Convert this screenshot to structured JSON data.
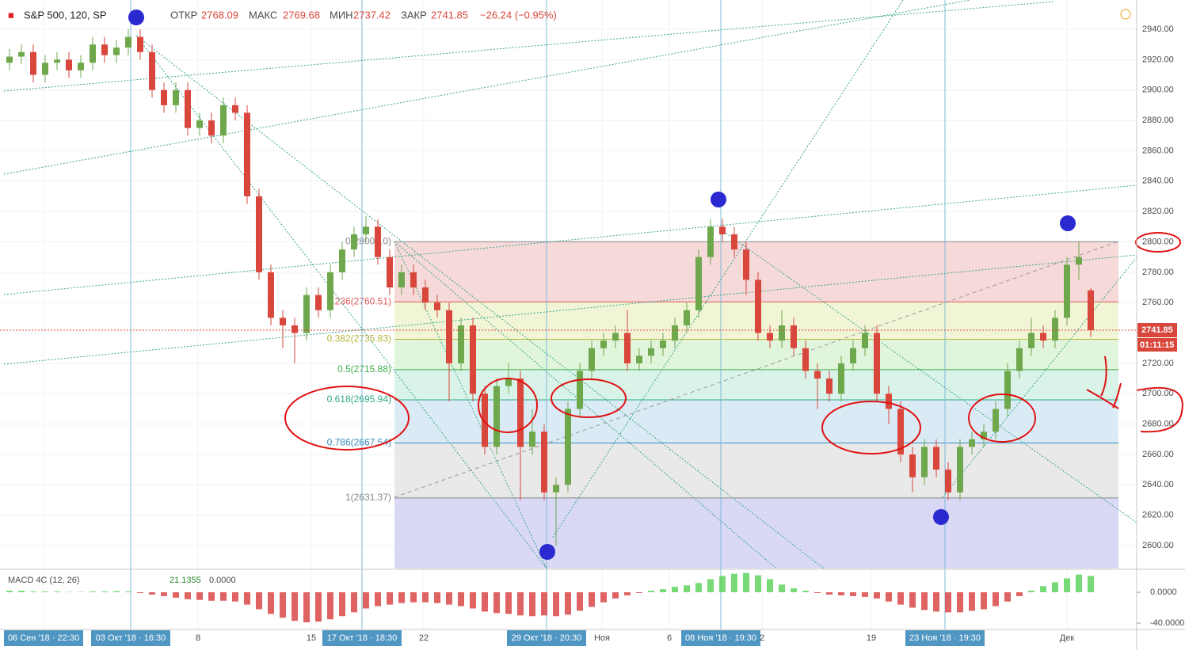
{
  "chart_data": {
    "type": "candlestick",
    "title": "S&P 500, 120, SP",
    "header_labels": {
      "open": "ОТКР",
      "high": "МАКС",
      "low": "МИН",
      "close": "ЗАКР"
    },
    "change": "−26.24 (−0.95%)",
    "timer": "01:11:15",
    "up_color": "#6fa84c",
    "down_color": "#d9473c",
    "ylim": [
      2584.9,
      2959.3
    ],
    "yticks": [
      {
        "value": 2600,
        "label": "2600.00"
      },
      {
        "value": 2620,
        "label": "2620.00"
      },
      {
        "value": 2640,
        "label": "2640.00"
      },
      {
        "value": 2660,
        "label": "2660.00"
      },
      {
        "value": 2680,
        "label": "2680.00"
      },
      {
        "value": 2700,
        "label": "2700.00"
      },
      {
        "value": 2720,
        "label": "2720.00"
      },
      {
        "value": 2740,
        "label": "2740.00"
      },
      {
        "value": 2760,
        "label": "2760.00"
      },
      {
        "value": 2780,
        "label": "2780.00"
      },
      {
        "value": 2800,
        "label": "2800.00"
      },
      {
        "value": 2820,
        "label": "2820.00"
      },
      {
        "value": 2840,
        "label": "2840.00"
      },
      {
        "value": 2860,
        "label": "2860.00"
      },
      {
        "value": 2880,
        "label": "2880.00"
      },
      {
        "value": 2900,
        "label": "2900.00"
      },
      {
        "value": 2920,
        "label": "2920.00"
      },
      {
        "value": 2940,
        "label": "2940.00"
      }
    ],
    "x_labels": [
      "06 Сен '18 · 22:30",
      "03 Окт '18 · 16:30",
      "8",
      "15",
      "17 Окт '18 · 18:30",
      "22",
      "29 Окт '18 · 20:30",
      "Ноя",
      "6",
      "08 Ноя '18 · 19:30",
      "2",
      "19",
      "23 Ноя '18 · 19:30",
      "Дек"
    ],
    "open": [
      2918,
      2922,
      2925,
      2910,
      2918,
      2920,
      2913,
      2918,
      2930,
      2923,
      2928,
      2935,
      2925,
      2900,
      2890,
      2900,
      2875,
      2880,
      2870,
      2890,
      2885,
      2830,
      2780,
      2750,
      2745,
      2740,
      2765,
      2755,
      2780,
      2795,
      2805,
      2810,
      2790,
      2770,
      2780,
      2770,
      2760,
      2755,
      2720,
      2745,
      2700,
      2665,
      2705,
      2710,
      2665,
      2675,
      2635,
      2640,
      2690,
      2715,
      2730,
      2735,
      2740,
      2720,
      2725,
      2730,
      2735,
      2745,
      2755,
      2790,
      2810,
      2805,
      2795,
      2775,
      2740,
      2735,
      2745,
      2730,
      2715,
      2710,
      2700,
      2720,
      2730,
      2740,
      2700,
      2690,
      2660,
      2645,
      2665,
      2650,
      2635,
      2665,
      2670,
      2675,
      2690,
      2715,
      2730,
      2740,
      2735,
      2750,
      2785,
      2768.09
    ],
    "high": [
      2927,
      2930,
      2930,
      2923,
      2925,
      2925,
      2923,
      2935,
      2935,
      2933,
      2940,
      2940,
      2930,
      2905,
      2905,
      2905,
      2885,
      2885,
      2895,
      2895,
      2890,
      2835,
      2785,
      2755,
      2750,
      2770,
      2770,
      2785,
      2800,
      2810,
      2817,
      2815,
      2795,
      2785,
      2785,
      2775,
      2765,
      2760,
      2750,
      2750,
      2705,
      2710,
      2720,
      2715,
      2690,
      2680,
      2645,
      2695,
      2720,
      2735,
      2740,
      2745,
      2755,
      2730,
      2735,
      2740,
      2750,
      2760,
      2795,
      2815,
      2815,
      2810,
      2800,
      2780,
      2745,
      2755,
      2750,
      2735,
      2720,
      2715,
      2725,
      2735,
      2745,
      2745,
      2705,
      2695,
      2665,
      2670,
      2670,
      2655,
      2670,
      2675,
      2680,
      2695,
      2720,
      2735,
      2750,
      2745,
      2755,
      2790,
      2800,
      2769.68
    ],
    "low": [
      2913,
      2917,
      2905,
      2905,
      2913,
      2908,
      2908,
      2913,
      2918,
      2918,
      2923,
      2920,
      2895,
      2885,
      2885,
      2870,
      2870,
      2865,
      2865,
      2880,
      2825,
      2775,
      2745,
      2730,
      2720,
      2735,
      2750,
      2750,
      2775,
      2790,
      2800,
      2785,
      2765,
      2765,
      2765,
      2755,
      2750,
      2695,
      2715,
      2695,
      2660,
      2660,
      2700,
      2630,
      2660,
      2630,
      2600,
      2635,
      2685,
      2710,
      2725,
      2730,
      2715,
      2715,
      2720,
      2725,
      2730,
      2740,
      2750,
      2785,
      2800,
      2790,
      2765,
      2735,
      2730,
      2730,
      2725,
      2710,
      2690,
      2695,
      2695,
      2715,
      2725,
      2695,
      2680,
      2655,
      2635,
      2640,
      2645,
      2630,
      2630,
      2660,
      2665,
      2670,
      2685,
      2710,
      2725,
      2730,
      2730,
      2745,
      2775,
      2737.42
    ],
    "close": [
      2922,
      2925,
      2910,
      2918,
      2920,
      2913,
      2918,
      2930,
      2923,
      2928,
      2935,
      2925,
      2900,
      2890,
      2900,
      2875,
      2880,
      2870,
      2890,
      2885,
      2830,
      2780,
      2750,
      2745,
      2740,
      2765,
      2755,
      2780,
      2795,
      2805,
      2810,
      2790,
      2770,
      2780,
      2770,
      2760,
      2755,
      2720,
      2745,
      2700,
      2665,
      2705,
      2710,
      2665,
      2675,
      2635,
      2640,
      2690,
      2715,
      2730,
      2735,
      2740,
      2720,
      2725,
      2730,
      2735,
      2745,
      2755,
      2790,
      2810,
      2805,
      2795,
      2775,
      2740,
      2735,
      2745,
      2730,
      2715,
      2710,
      2700,
      2720,
      2730,
      2740,
      2700,
      2690,
      2660,
      2645,
      2665,
      2650,
      2635,
      2665,
      2670,
      2675,
      2690,
      2715,
      2730,
      2740,
      2735,
      2750,
      2785,
      2790,
      2741.85
    ],
    "fib_levels": [
      {
        "label": "0(2800.10)",
        "value": 2800.1,
        "color": "#888888",
        "fill": "#f4cfcf"
      },
      {
        "label": "0.236(2760.51)",
        "value": 2760.51,
        "color": "#e05a5a",
        "fill": "#eef2cc"
      },
      {
        "label": "0.382(2735.83)",
        "value": 2735.83,
        "color": "#b7b53a",
        "fill": "#d8f2d2"
      },
      {
        "label": "0.5(2715.88)",
        "value": 2715.88,
        "color": "#3fae4a",
        "fill": "#cff0e4"
      },
      {
        "label": "0.618(2695.94)",
        "value": 2695.94,
        "color": "#2fa98a",
        "fill": "#d2e6f3"
      },
      {
        "label": "0.786(2667.54)",
        "value": 2667.54,
        "color": "#3a8fc0",
        "fill": "#e3e3e3"
      },
      {
        "label": "1(2631.37)",
        "value": 2631.37,
        "color": "#888888",
        "fill": "#d0d0f3"
      }
    ],
    "macd": {
      "title": "MACD 4C (12, 26)",
      "last": "21.1355",
      "signal": "0.0000",
      "ylim": [
        -48.2,
        26.7
      ],
      "yticks": [
        {
          "value": 0,
          "label": "0.0000"
        },
        {
          "value": -40,
          "label": "-40.0000"
        }
      ],
      "pos_color": "#5fd35f",
      "neg_color": "#d94848",
      "values": [
        2,
        2,
        1,
        1,
        1,
        0.5,
        0.5,
        1,
        1,
        1.5,
        1,
        -1,
        -3,
        -5,
        -7,
        -9,
        -10,
        -11,
        -11,
        -12,
        -16,
        -22,
        -28,
        -33,
        -37,
        -39,
        -38,
        -35,
        -31,
        -26,
        -21,
        -18,
        -16,
        -14,
        -13,
        -13,
        -14,
        -16,
        -18,
        -21,
        -25,
        -27,
        -28,
        -30,
        -31,
        -30,
        -31,
        -29,
        -24,
        -19,
        -13,
        -8,
        -4,
        -1,
        2,
        4,
        7,
        9,
        12,
        17,
        21,
        24,
        25,
        22,
        17,
        10,
        5,
        2,
        -1,
        -3,
        -4,
        -5,
        -6,
        -8,
        -12,
        -16,
        -20,
        -23,
        -25,
        -26,
        -26,
        -24,
        -22,
        -18,
        -12,
        -5,
        2,
        8,
        13,
        18,
        23,
        21.1355
      ]
    }
  }
}
